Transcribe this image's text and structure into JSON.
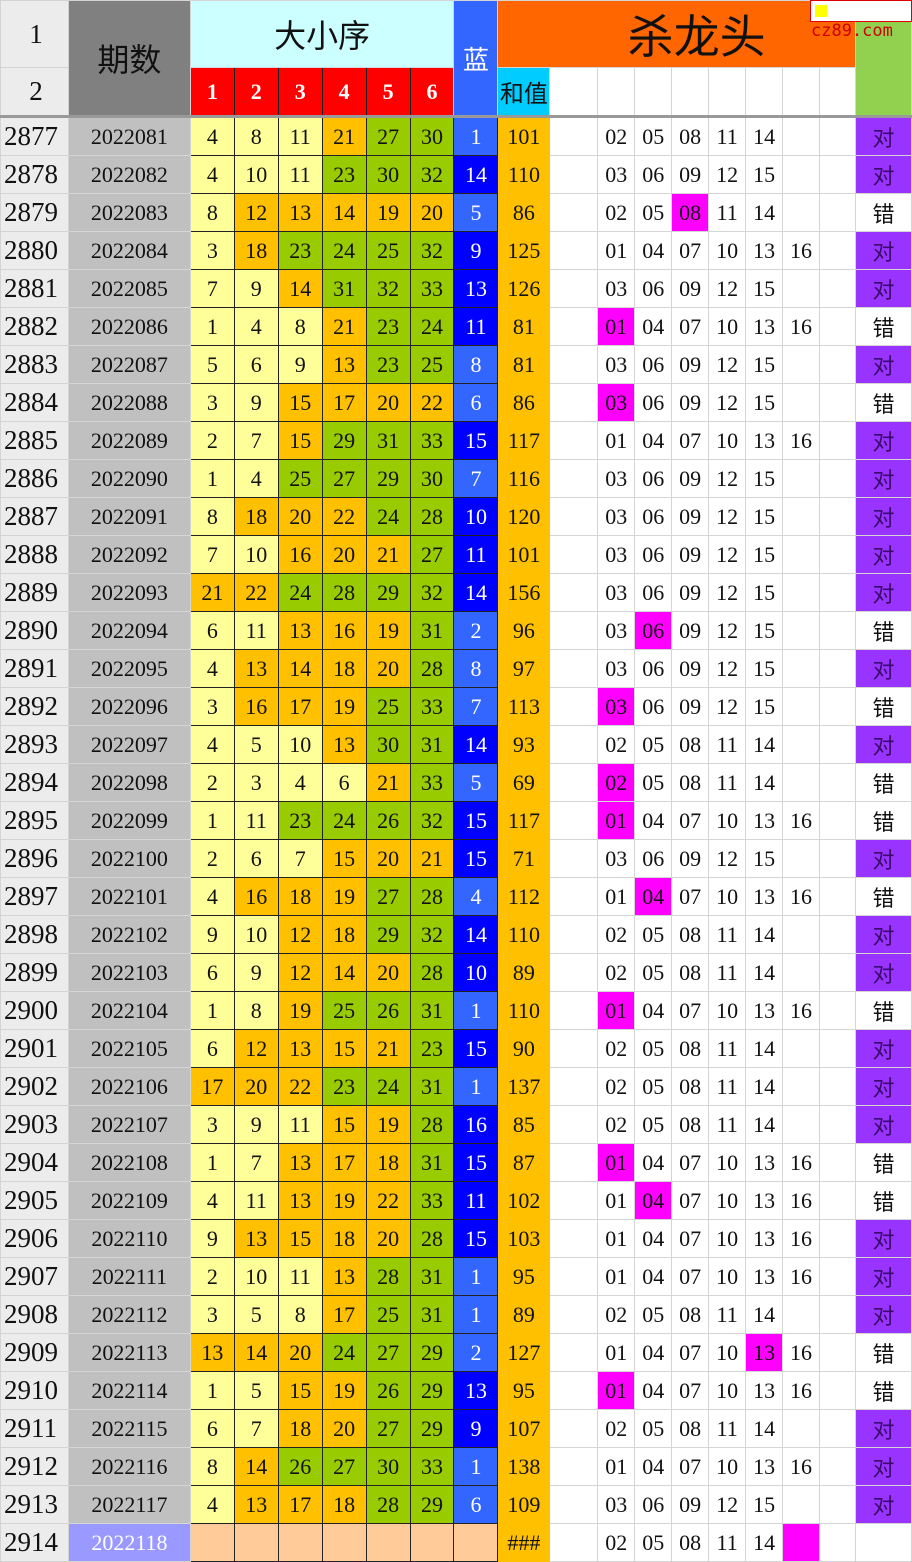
{
  "header": {
    "row1_num": "1",
    "row2_num": "2",
    "period_label": "期数",
    "order_label": "大小序",
    "position_labels": [
      "1",
      "2",
      "3",
      "4",
      "5",
      "6"
    ],
    "blue_label": "蓝",
    "sum_label": "和值",
    "kill_label": "杀龙头"
  },
  "watermark": "cz89.com",
  "colors": {
    "small": "#ffff99",
    "mid": "#ffc000",
    "large": "#99cc00",
    "blue_light": "#3366ff",
    "blue_dark": "#0000ff",
    "highlight": "#ff00ff",
    "correct": "#9933ff"
  },
  "kill_sets": {
    "A": [
      "02",
      "05",
      "08",
      "11",
      "14"
    ],
    "B": [
      "03",
      "06",
      "09",
      "12",
      "15"
    ],
    "C": [
      "01",
      "04",
      "07",
      "10",
      "13",
      "16"
    ]
  },
  "rows": [
    {
      "n": "2877",
      "p": "2022081",
      "nums": [
        4,
        8,
        11,
        21,
        27,
        30
      ],
      "blue": 1,
      "sum": "101",
      "kill": "A",
      "hl": -1,
      "res": "对"
    },
    {
      "n": "2878",
      "p": "2022082",
      "nums": [
        4,
        10,
        11,
        23,
        30,
        32
      ],
      "blue": 14,
      "sum": "110",
      "kill": "B",
      "hl": -1,
      "res": "对"
    },
    {
      "n": "2879",
      "p": "2022083",
      "nums": [
        8,
        12,
        13,
        14,
        19,
        20
      ],
      "blue": 5,
      "sum": "86",
      "kill": "A",
      "hl": 2,
      "res": "错"
    },
    {
      "n": "2880",
      "p": "2022084",
      "nums": [
        3,
        18,
        23,
        24,
        25,
        32
      ],
      "blue": 9,
      "sum": "125",
      "kill": "C",
      "hl": -1,
      "res": "对"
    },
    {
      "n": "2881",
      "p": "2022085",
      "nums": [
        7,
        9,
        14,
        31,
        32,
        33
      ],
      "blue": 13,
      "sum": "126",
      "kill": "B",
      "hl": -1,
      "res": "对"
    },
    {
      "n": "2882",
      "p": "2022086",
      "nums": [
        1,
        4,
        8,
        21,
        23,
        24
      ],
      "blue": 11,
      "sum": "81",
      "kill": "C",
      "hl": 0,
      "res": "错"
    },
    {
      "n": "2883",
      "p": "2022087",
      "nums": [
        5,
        6,
        9,
        13,
        23,
        25
      ],
      "blue": 8,
      "sum": "81",
      "kill": "B",
      "hl": -1,
      "res": "对"
    },
    {
      "n": "2884",
      "p": "2022088",
      "nums": [
        3,
        9,
        15,
        17,
        20,
        22
      ],
      "blue": 6,
      "sum": "86",
      "kill": "B",
      "hl": 0,
      "res": "错"
    },
    {
      "n": "2885",
      "p": "2022089",
      "nums": [
        2,
        7,
        15,
        29,
        31,
        33
      ],
      "blue": 15,
      "sum": "117",
      "kill": "C",
      "hl": -1,
      "res": "对"
    },
    {
      "n": "2886",
      "p": "2022090",
      "nums": [
        1,
        4,
        25,
        27,
        29,
        30
      ],
      "blue": 7,
      "sum": "116",
      "kill": "B",
      "hl": -1,
      "res": "对"
    },
    {
      "n": "2887",
      "p": "2022091",
      "nums": [
        8,
        18,
        20,
        22,
        24,
        28
      ],
      "blue": 10,
      "sum": "120",
      "kill": "B",
      "hl": -1,
      "res": "对"
    },
    {
      "n": "2888",
      "p": "2022092",
      "nums": [
        7,
        10,
        16,
        20,
        21,
        27
      ],
      "blue": 11,
      "sum": "101",
      "kill": "B",
      "hl": -1,
      "res": "对"
    },
    {
      "n": "2889",
      "p": "2022093",
      "nums": [
        21,
        22,
        24,
        28,
        29,
        32
      ],
      "blue": 14,
      "sum": "156",
      "kill": "B",
      "hl": -1,
      "res": "对"
    },
    {
      "n": "2890",
      "p": "2022094",
      "nums": [
        6,
        11,
        13,
        16,
        19,
        31
      ],
      "blue": 2,
      "sum": "96",
      "kill": "B",
      "hl": 1,
      "res": "错"
    },
    {
      "n": "2891",
      "p": "2022095",
      "nums": [
        4,
        13,
        14,
        18,
        20,
        28
      ],
      "blue": 8,
      "sum": "97",
      "kill": "B",
      "hl": -1,
      "res": "对"
    },
    {
      "n": "2892",
      "p": "2022096",
      "nums": [
        3,
        16,
        17,
        19,
        25,
        33
      ],
      "blue": 7,
      "sum": "113",
      "kill": "B",
      "hl": 0,
      "res": "错"
    },
    {
      "n": "2893",
      "p": "2022097",
      "nums": [
        4,
        5,
        10,
        13,
        30,
        31
      ],
      "blue": 14,
      "sum": "93",
      "kill": "A",
      "hl": -1,
      "res": "对"
    },
    {
      "n": "2894",
      "p": "2022098",
      "nums": [
        2,
        3,
        4,
        6,
        21,
        33
      ],
      "blue": 5,
      "sum": "69",
      "kill": "A",
      "hl": 0,
      "res": "错"
    },
    {
      "n": "2895",
      "p": "2022099",
      "nums": [
        1,
        11,
        23,
        24,
        26,
        32
      ],
      "blue": 15,
      "sum": "117",
      "kill": "C",
      "hl": 0,
      "res": "错"
    },
    {
      "n": "2896",
      "p": "2022100",
      "nums": [
        2,
        6,
        7,
        15,
        20,
        21
      ],
      "blue": 15,
      "sum": "71",
      "kill": "B",
      "hl": -1,
      "res": "对"
    },
    {
      "n": "2897",
      "p": "2022101",
      "nums": [
        4,
        16,
        18,
        19,
        27,
        28
      ],
      "blue": 4,
      "sum": "112",
      "kill": "C",
      "hl": 1,
      "res": "错"
    },
    {
      "n": "2898",
      "p": "2022102",
      "nums": [
        9,
        10,
        12,
        18,
        29,
        32
      ],
      "blue": 14,
      "sum": "110",
      "kill": "A",
      "hl": -1,
      "res": "对"
    },
    {
      "n": "2899",
      "p": "2022103",
      "nums": [
        6,
        9,
        12,
        14,
        20,
        28
      ],
      "blue": 10,
      "sum": "89",
      "kill": "A",
      "hl": -1,
      "res": "对"
    },
    {
      "n": "2900",
      "p": "2022104",
      "nums": [
        1,
        8,
        19,
        25,
        26,
        31
      ],
      "blue": 1,
      "sum": "110",
      "kill": "C",
      "hl": 0,
      "res": "错"
    },
    {
      "n": "2901",
      "p": "2022105",
      "nums": [
        6,
        12,
        13,
        15,
        21,
        23
      ],
      "blue": 15,
      "sum": "90",
      "kill": "A",
      "hl": -1,
      "res": "对"
    },
    {
      "n": "2902",
      "p": "2022106",
      "nums": [
        17,
        20,
        22,
        23,
        24,
        31
      ],
      "blue": 1,
      "sum": "137",
      "kill": "A",
      "hl": -1,
      "res": "对"
    },
    {
      "n": "2903",
      "p": "2022107",
      "nums": [
        3,
        9,
        11,
        15,
        19,
        28
      ],
      "blue": 16,
      "sum": "85",
      "kill": "A",
      "hl": -1,
      "res": "对"
    },
    {
      "n": "2904",
      "p": "2022108",
      "nums": [
        1,
        7,
        13,
        17,
        18,
        31
      ],
      "blue": 15,
      "sum": "87",
      "kill": "C",
      "hl": 0,
      "res": "错"
    },
    {
      "n": "2905",
      "p": "2022109",
      "nums": [
        4,
        11,
        13,
        19,
        22,
        33
      ],
      "blue": 11,
      "sum": "102",
      "kill": "C",
      "hl": 1,
      "res": "错"
    },
    {
      "n": "2906",
      "p": "2022110",
      "nums": [
        9,
        13,
        15,
        18,
        20,
        28
      ],
      "blue": 15,
      "sum": "103",
      "kill": "C",
      "hl": -1,
      "res": "对"
    },
    {
      "n": "2907",
      "p": "2022111",
      "nums": [
        2,
        10,
        11,
        13,
        28,
        31
      ],
      "blue": 1,
      "sum": "95",
      "kill": "C",
      "hl": -1,
      "res": "对"
    },
    {
      "n": "2908",
      "p": "2022112",
      "nums": [
        3,
        5,
        8,
        17,
        25,
        31
      ],
      "blue": 1,
      "sum": "89",
      "kill": "A",
      "hl": -1,
      "res": "对"
    },
    {
      "n": "2909",
      "p": "2022113",
      "nums": [
        13,
        14,
        20,
        24,
        27,
        29
      ],
      "blue": 2,
      "sum": "127",
      "kill": "C",
      "hl": 4,
      "res": "错"
    },
    {
      "n": "2910",
      "p": "2022114",
      "nums": [
        1,
        5,
        15,
        19,
        26,
        29
      ],
      "blue": 13,
      "sum": "95",
      "kill": "C",
      "hl": 0,
      "res": "错"
    },
    {
      "n": "2911",
      "p": "2022115",
      "nums": [
        6,
        7,
        18,
        20,
        27,
        29
      ],
      "blue": 9,
      "sum": "107",
      "kill": "A",
      "hl": -1,
      "res": "对"
    },
    {
      "n": "2912",
      "p": "2022116",
      "nums": [
        8,
        14,
        26,
        27,
        30,
        33
      ],
      "blue": 1,
      "sum": "138",
      "kill": "C",
      "hl": -1,
      "res": "对"
    },
    {
      "n": "2913",
      "p": "2022117",
      "nums": [
        4,
        13,
        17,
        18,
        28,
        29
      ],
      "blue": 6,
      "sum": "109",
      "kill": "B",
      "hl": -1,
      "res": "对"
    },
    {
      "n": "2914",
      "p": "2022118",
      "nums": [],
      "blue": null,
      "sum": "###",
      "kill": "A",
      "hl": 5,
      "res": ""
    }
  ]
}
